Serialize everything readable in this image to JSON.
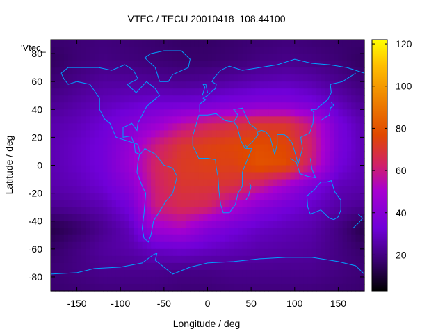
{
  "chart_data": {
    "type": "heatmap",
    "title": "VTEC / TECU 20010418_108.44100",
    "xlabel": "Longitude / deg",
    "ylabel": "Latitude / deg",
    "key_label": "'Vtec_",
    "xlim": [
      -180,
      180
    ],
    "ylim": [
      -90,
      90
    ],
    "x_ticks": [
      -150,
      -100,
      -50,
      0,
      50,
      100,
      150
    ],
    "y_ticks": [
      -80,
      -60,
      -40,
      -20,
      0,
      20,
      40,
      60,
      80
    ],
    "colorbar": {
      "range": [
        3,
        122
      ],
      "ticks": [
        20,
        40,
        60,
        80,
        100,
        120
      ],
      "palette": "gnuplot black-purple-red-orange-yellow"
    },
    "grid": false,
    "x_axis_values": [
      -180,
      -150,
      -120,
      -90,
      -60,
      -30,
      0,
      30,
      60,
      90,
      120,
      150,
      180
    ],
    "y_axis_values": [
      90,
      75,
      60,
      45,
      30,
      15,
      0,
      -15,
      -30,
      -45,
      -60,
      -75,
      -90
    ],
    "values": [
      [
        17,
        18,
        19,
        18,
        17,
        16,
        16,
        17,
        18,
        19,
        18,
        17,
        17
      ],
      [
        15,
        18,
        20,
        19,
        18,
        17,
        17,
        18,
        20,
        21,
        20,
        18,
        15
      ],
      [
        18,
        21,
        24,
        24,
        23,
        22,
        23,
        25,
        27,
        28,
        26,
        22,
        18
      ],
      [
        22,
        25,
        28,
        30,
        32,
        32,
        33,
        36,
        38,
        38,
        34,
        28,
        22
      ],
      [
        26,
        28,
        32,
        38,
        45,
        55,
        62,
        66,
        70,
        70,
        58,
        35,
        26
      ],
      [
        27,
        30,
        34,
        44,
        60,
        70,
        74,
        76,
        78,
        76,
        62,
        36,
        27
      ],
      [
        27,
        30,
        34,
        46,
        64,
        72,
        74,
        74,
        80,
        78,
        60,
        34,
        27
      ],
      [
        26,
        28,
        32,
        40,
        62,
        70,
        70,
        68,
        60,
        48,
        36,
        28,
        26
      ],
      [
        22,
        24,
        27,
        34,
        60,
        66,
        64,
        50,
        40,
        34,
        30,
        25,
        22
      ],
      [
        12,
        16,
        22,
        28,
        48,
        52,
        40,
        34,
        30,
        28,
        26,
        20,
        12
      ],
      [
        16,
        20,
        24,
        26,
        30,
        32,
        30,
        28,
        26,
        25,
        24,
        20,
        16
      ],
      [
        18,
        20,
        22,
        22,
        22,
        21,
        21,
        22,
        22,
        22,
        22,
        20,
        18
      ],
      [
        17,
        18,
        19,
        19,
        19,
        18,
        18,
        19,
        19,
        19,
        19,
        18,
        17
      ]
    ]
  }
}
